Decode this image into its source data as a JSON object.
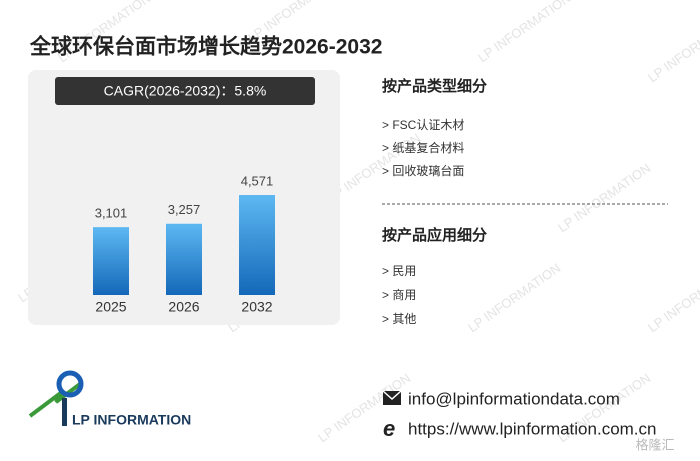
{
  "chart_data": {
    "type": "bar",
    "title": "全球环保台面市场增长趋势2026-2032",
    "annotation": "CAGR(2026-2032)：5.8%",
    "categories": [
      "2025",
      "2026",
      "2032"
    ],
    "values": [
      3101,
      3257,
      4571
    ],
    "value_labels": [
      "3,101",
      "3,257",
      "4,571"
    ],
    "color": "#2a8ad8"
  },
  "segments": [
    {
      "title": "按产品类型细分",
      "items": [
        "> FSC认证木材",
        "> 纸基复合材料",
        "> 回收玻璃台面"
      ]
    },
    {
      "title": "按产品应用细分",
      "items": [
        "> 民用",
        "> 商用",
        "> 其他"
      ]
    }
  ],
  "contact": {
    "email": "info@lpinformationdata.com",
    "website": "https://www.lpinformation.com.cn"
  },
  "logo": {
    "text": "LP INFORMATION"
  },
  "corner_mark": "格隆汇"
}
